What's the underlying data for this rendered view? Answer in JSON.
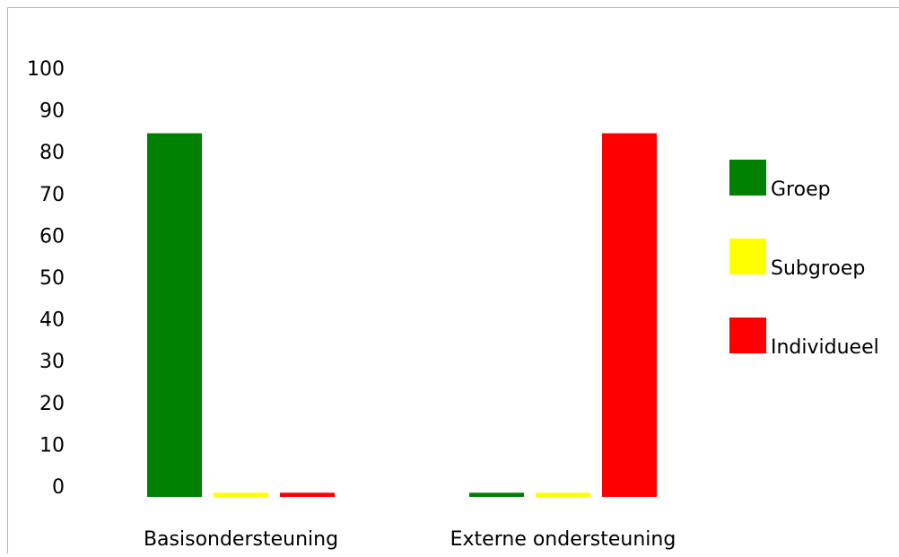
{
  "chart_data": {
    "type": "bar",
    "categories": [
      "Basisondersteuning",
      "Externe ondersteuning"
    ],
    "series": [
      {
        "name": "Groep",
        "color": "#008000",
        "values": [
          87,
          1
        ]
      },
      {
        "name": "Subgroep",
        "color": "#ffff00",
        "values": [
          1,
          1
        ]
      },
      {
        "name": "Individueel",
        "color": "#ff0000",
        "values": [
          1,
          87
        ]
      }
    ],
    "ylim": [
      0,
      100
    ],
    "yticks": [
      0,
      10,
      20,
      30,
      40,
      50,
      60,
      70,
      80,
      90,
      100
    ],
    "grid": false,
    "legend_position": "right"
  }
}
